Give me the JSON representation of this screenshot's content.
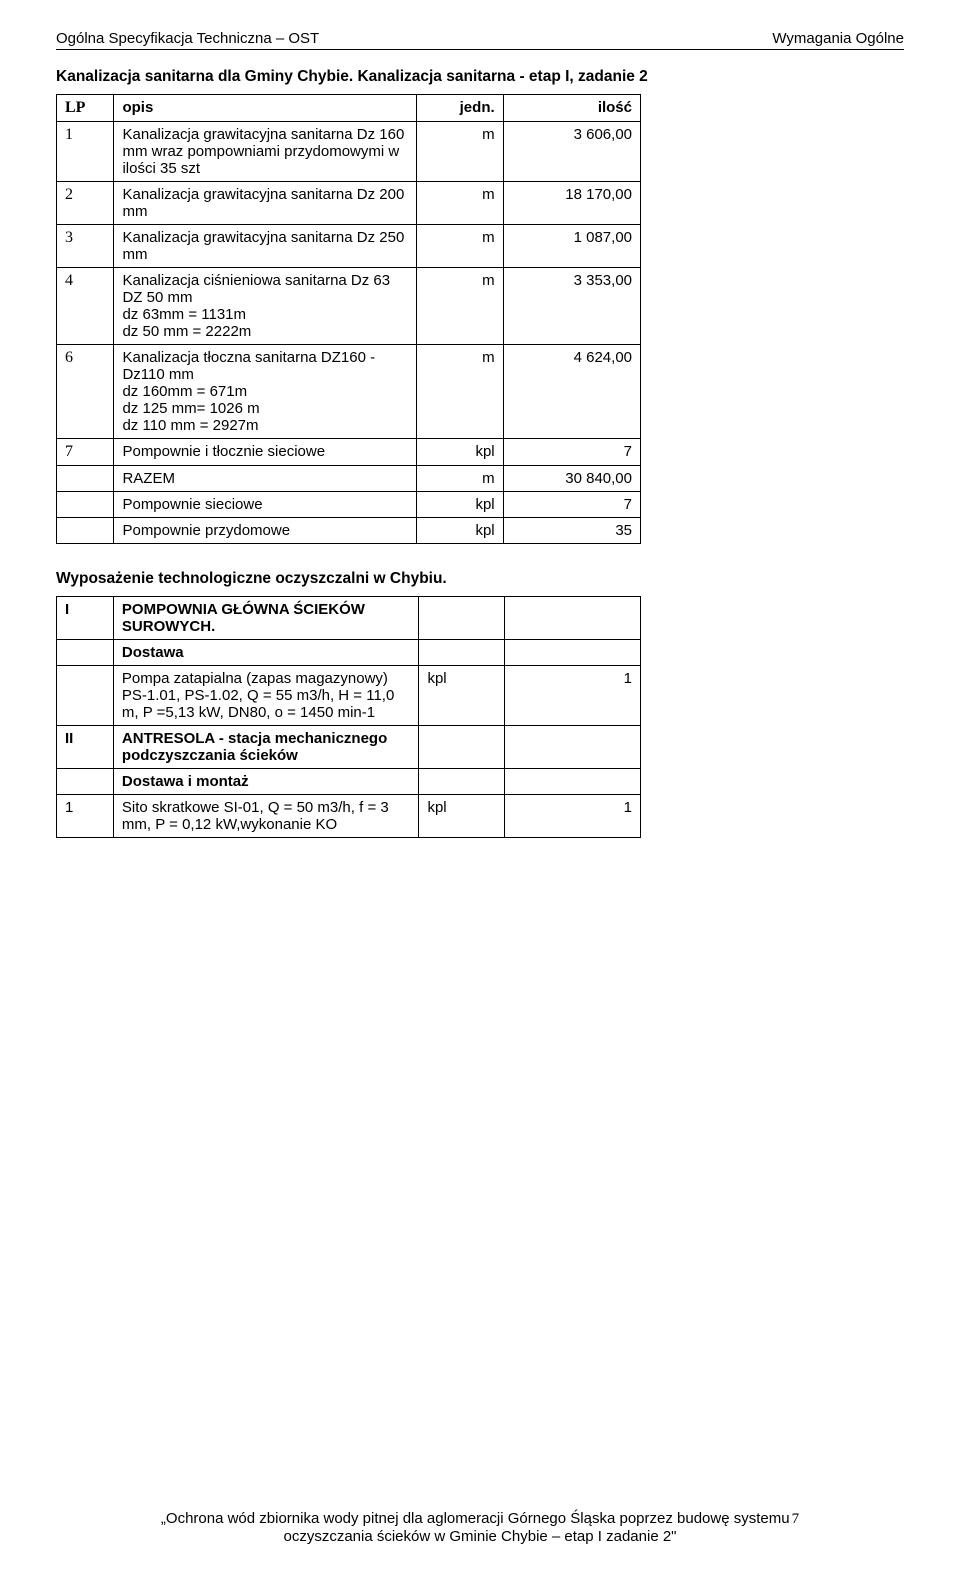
{
  "header": {
    "left": "Ogólna Specyfikacja Techniczna – OST",
    "right": "Wymagania Ogólne"
  },
  "table1_title": "Kanalizacja sanitarna dla Gminy Chybie. Kanalizacja sanitarna - etap I, zadanie 2",
  "table1": {
    "head": {
      "lp": "LP",
      "opis": "opis",
      "jedn": "jedn.",
      "ilosc": "ilość"
    },
    "rows": [
      {
        "lp": "1",
        "opis": "Kanalizacja grawitacyjna sanitarna Dz 160 mm wraz pompowniami przydomowymi w ilości 35 szt",
        "jedn": "m",
        "ilosc": "3 606,00"
      },
      {
        "lp": "2",
        "opis": "Kanalizacja grawitacyjna sanitarna Dz 200 mm",
        "jedn": "m",
        "ilosc": "18 170,00"
      },
      {
        "lp": "3",
        "opis": "Kanalizacja grawitacyjna sanitarna Dz 250 mm",
        "jedn": "m",
        "ilosc": "1 087,00"
      },
      {
        "lp": "4",
        "opis": "Kanalizacja ciśnieniowa sanitarna Dz 63 DZ 50 mm\ndz 63mm = 1131m\ndz 50 mm = 2222m",
        "jedn": "m",
        "ilosc": "3 353,00"
      },
      {
        "lp": "6",
        "opis": "Kanalizacja tłoczna sanitarna DZ160 - Dz110 mm\ndz 160mm = 671m\ndz 125 mm= 1026 m\ndz 110 mm = 2927m",
        "jedn": "m",
        "ilosc": "4 624,00"
      },
      {
        "lp": "7",
        "opis": "Pompownie i tłocznie sieciowe",
        "jedn": "kpl",
        "ilosc": "7"
      }
    ],
    "summary": [
      {
        "label": "RAZEM",
        "jedn": "m",
        "ilosc": "30 840,00"
      },
      {
        "label": "Pompownie sieciowe",
        "jedn": "kpl",
        "ilosc": "7"
      },
      {
        "label": "Pompownie przydomowe",
        "jedn": "kpl",
        "ilosc": "35"
      }
    ]
  },
  "table2_title": "Wyposażenie technologiczne oczyszczalni w Chybiu.",
  "table2": {
    "rows": [
      {
        "lp": "I",
        "opis": "POMPOWNIA GŁÓWNA ŚCIEKÓW SUROWYCH.",
        "jedn": "",
        "ilosc": "",
        "bold": true
      },
      {
        "lp": "",
        "opis": "Dostawa",
        "jedn": "",
        "ilosc": "",
        "bold": true
      },
      {
        "lp": "",
        "opis": "Pompa zatapialna (zapas magazynowy) PS-1.01, PS-1.02, Q = 55 m3/h, H = 11,0 m, P =5,13 kW, DN80, o = 1450 min-1",
        "jedn": "kpl",
        "ilosc": "1",
        "bold": false
      },
      {
        "lp": "II",
        "opis": "ANTRESOLA - stacja mechanicznego podczyszczania ścieków",
        "jedn": "",
        "ilosc": "",
        "bold": true
      },
      {
        "lp": "",
        "opis": "Dostawa i montaż",
        "jedn": "",
        "ilosc": "",
        "bold": true
      },
      {
        "lp": "1",
        "opis": "Sito skratkowe SI-01, Q = 50 m3/h, f = 3 mm, P = 0,12 kW,wykonanie KO",
        "jedn": "kpl",
        "ilosc": "1",
        "bold": false
      }
    ]
  },
  "footer": {
    "line1": "„Ochrona wód zbiornika wody pitnej dla aglomeracji Górnego Śląska poprzez budowę systemu",
    "pagenum": "7",
    "line2": "oczyszczania ścieków w Gminie Chybie – etap I zadanie 2\""
  }
}
